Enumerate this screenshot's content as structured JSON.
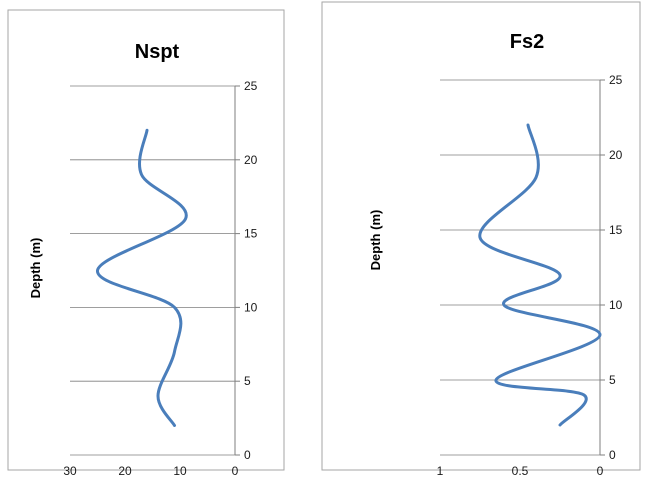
{
  "chart_data": [
    {
      "type": "line",
      "title": "Nspt",
      "xlabel": "",
      "ylabel": "Depth (m)",
      "xlim": [
        30,
        0
      ],
      "ylim": [
        0,
        25
      ],
      "x_ticks": [
        "30",
        "20",
        "10",
        "0"
      ],
      "y_ticks": [
        "0",
        "5",
        "10",
        "15",
        "20",
        "25"
      ],
      "grid": "horizontal",
      "color": "#4a7ebb",
      "series": [
        {
          "points": [
            {
              "x": 16,
              "y": 22
            },
            {
              "x": 17,
              "y": 19
            },
            {
              "x": 9,
              "y": 16
            },
            {
              "x": 25,
              "y": 12.5
            },
            {
              "x": 11,
              "y": 10
            },
            {
              "x": 11,
              "y": 7
            },
            {
              "x": 14,
              "y": 4
            },
            {
              "x": 11,
              "y": 2
            }
          ]
        }
      ]
    },
    {
      "type": "line",
      "title": "Fs2",
      "xlabel": "",
      "ylabel": "Depth (m)",
      "xlim": [
        1,
        0
      ],
      "ylim": [
        0,
        25
      ],
      "x_ticks": [
        "1",
        "0.5",
        "0"
      ],
      "y_ticks": [
        "0",
        "5",
        "10",
        "15",
        "20",
        "25"
      ],
      "grid": "horizontal",
      "color": "#4a7ebb",
      "series": [
        {
          "points": [
            {
              "x": 0.45,
              "y": 22
            },
            {
              "x": 0.4,
              "y": 18.5
            },
            {
              "x": 0.75,
              "y": 14.5
            },
            {
              "x": 0.25,
              "y": 12
            },
            {
              "x": 0.6,
              "y": 10
            },
            {
              "x": 0.0,
              "y": 8
            },
            {
              "x": 0.65,
              "y": 5
            },
            {
              "x": 0.1,
              "y": 4
            },
            {
              "x": 0.25,
              "y": 2
            }
          ]
        }
      ]
    }
  ]
}
